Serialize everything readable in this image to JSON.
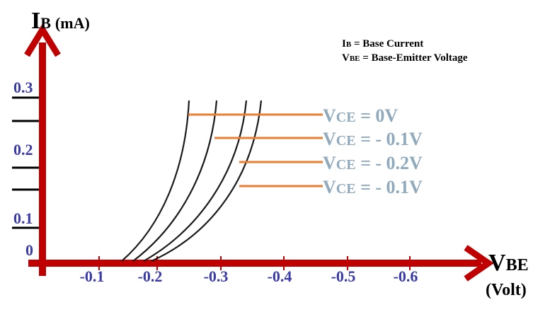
{
  "chart_data": {
    "type": "line",
    "title": "",
    "y_axis": {
      "label_main": "I",
      "label_sub": "B",
      "label_unit": "(mA)"
    },
    "x_axis": {
      "label_main": "V",
      "label_sub": "BE",
      "label_unit": "(Volt)"
    },
    "y_ticks": [
      "0",
      "0.1",
      "0.2",
      "0.3"
    ],
    "x_ticks": [
      "-0.1",
      "-0.2",
      "-0.3",
      "-0.4",
      "-0.5",
      "-0.6"
    ],
    "legend": [
      {
        "sym": "I",
        "sub": "B",
        "text": " = Base Current"
      },
      {
        "sym": "V",
        "sub": "BE",
        "text": " = Base-Emitter Voltage"
      }
    ],
    "series": [
      {
        "name": "VCE = 0V",
        "label_main": "V",
        "label_sub": "CE",
        "label_rest": " = 0V"
      },
      {
        "name": "VCE = - 0.1V",
        "label_main": "V",
        "label_sub": "CE",
        "label_rest": " = - 0.1V"
      },
      {
        "name": "VCE = - 0.2V",
        "label_main": "V",
        "label_sub": "CE",
        "label_rest": " = - 0.2V"
      },
      {
        "name": "VCE = - 0.1V",
        "label_main": "V",
        "label_sub": "CE",
        "label_rest": " = - 0.1V"
      }
    ],
    "colors": {
      "axis": "#c00000",
      "curve": "#1a1a1a",
      "leader": "#ed7d31",
      "label": "#8faabd",
      "tick": "#3a3aa8"
    }
  }
}
